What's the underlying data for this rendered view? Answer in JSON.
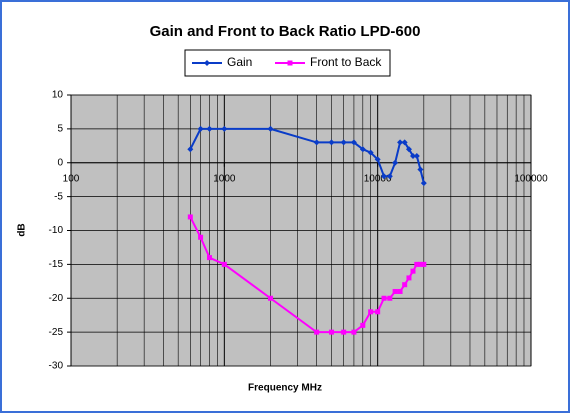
{
  "chart_data": {
    "type": "line",
    "title": "Gain and Front to Back Ratio LPD-600",
    "x_label": "Frequency MHz",
    "y_label": "dB",
    "x": [
      600,
      700,
      800,
      1000,
      2000,
      4000,
      5000,
      6000,
      7000,
      8000,
      9000,
      10000,
      11000,
      12000,
      13000,
      14000,
      15000,
      16000,
      17000,
      18000,
      19000,
      20000
    ],
    "series": [
      {
        "name": "Gain",
        "color": "#0a3cc8",
        "marker": "diamond",
        "values": [
          2,
          5,
          5,
          5,
          5,
          3,
          3,
          3,
          3,
          2,
          1.5,
          0.5,
          -2,
          -2,
          0,
          3,
          3,
          2,
          1,
          1,
          -1,
          -3
        ]
      },
      {
        "name": "Front to Back",
        "color": "#ff00ff",
        "marker": "square",
        "values": [
          -8,
          -11,
          -14,
          -15,
          -20,
          -25,
          -25,
          -25,
          -25,
          -24,
          -22,
          -22,
          -20,
          -20,
          -19,
          -19,
          -18,
          -17,
          -16,
          -15,
          -15,
          -15
        ]
      }
    ],
    "xlim": [
      100,
      100000
    ],
    "xticks": [
      100,
      1000,
      10000,
      100000
    ],
    "x_log": true,
    "ylim": [
      -30,
      10
    ],
    "yticks": [
      -30,
      -25,
      -20,
      -15,
      -10,
      -5,
      0,
      5,
      10
    ],
    "grid": true,
    "minor_grid": true,
    "plot_background": "#c0c0c0",
    "legend": "top"
  }
}
